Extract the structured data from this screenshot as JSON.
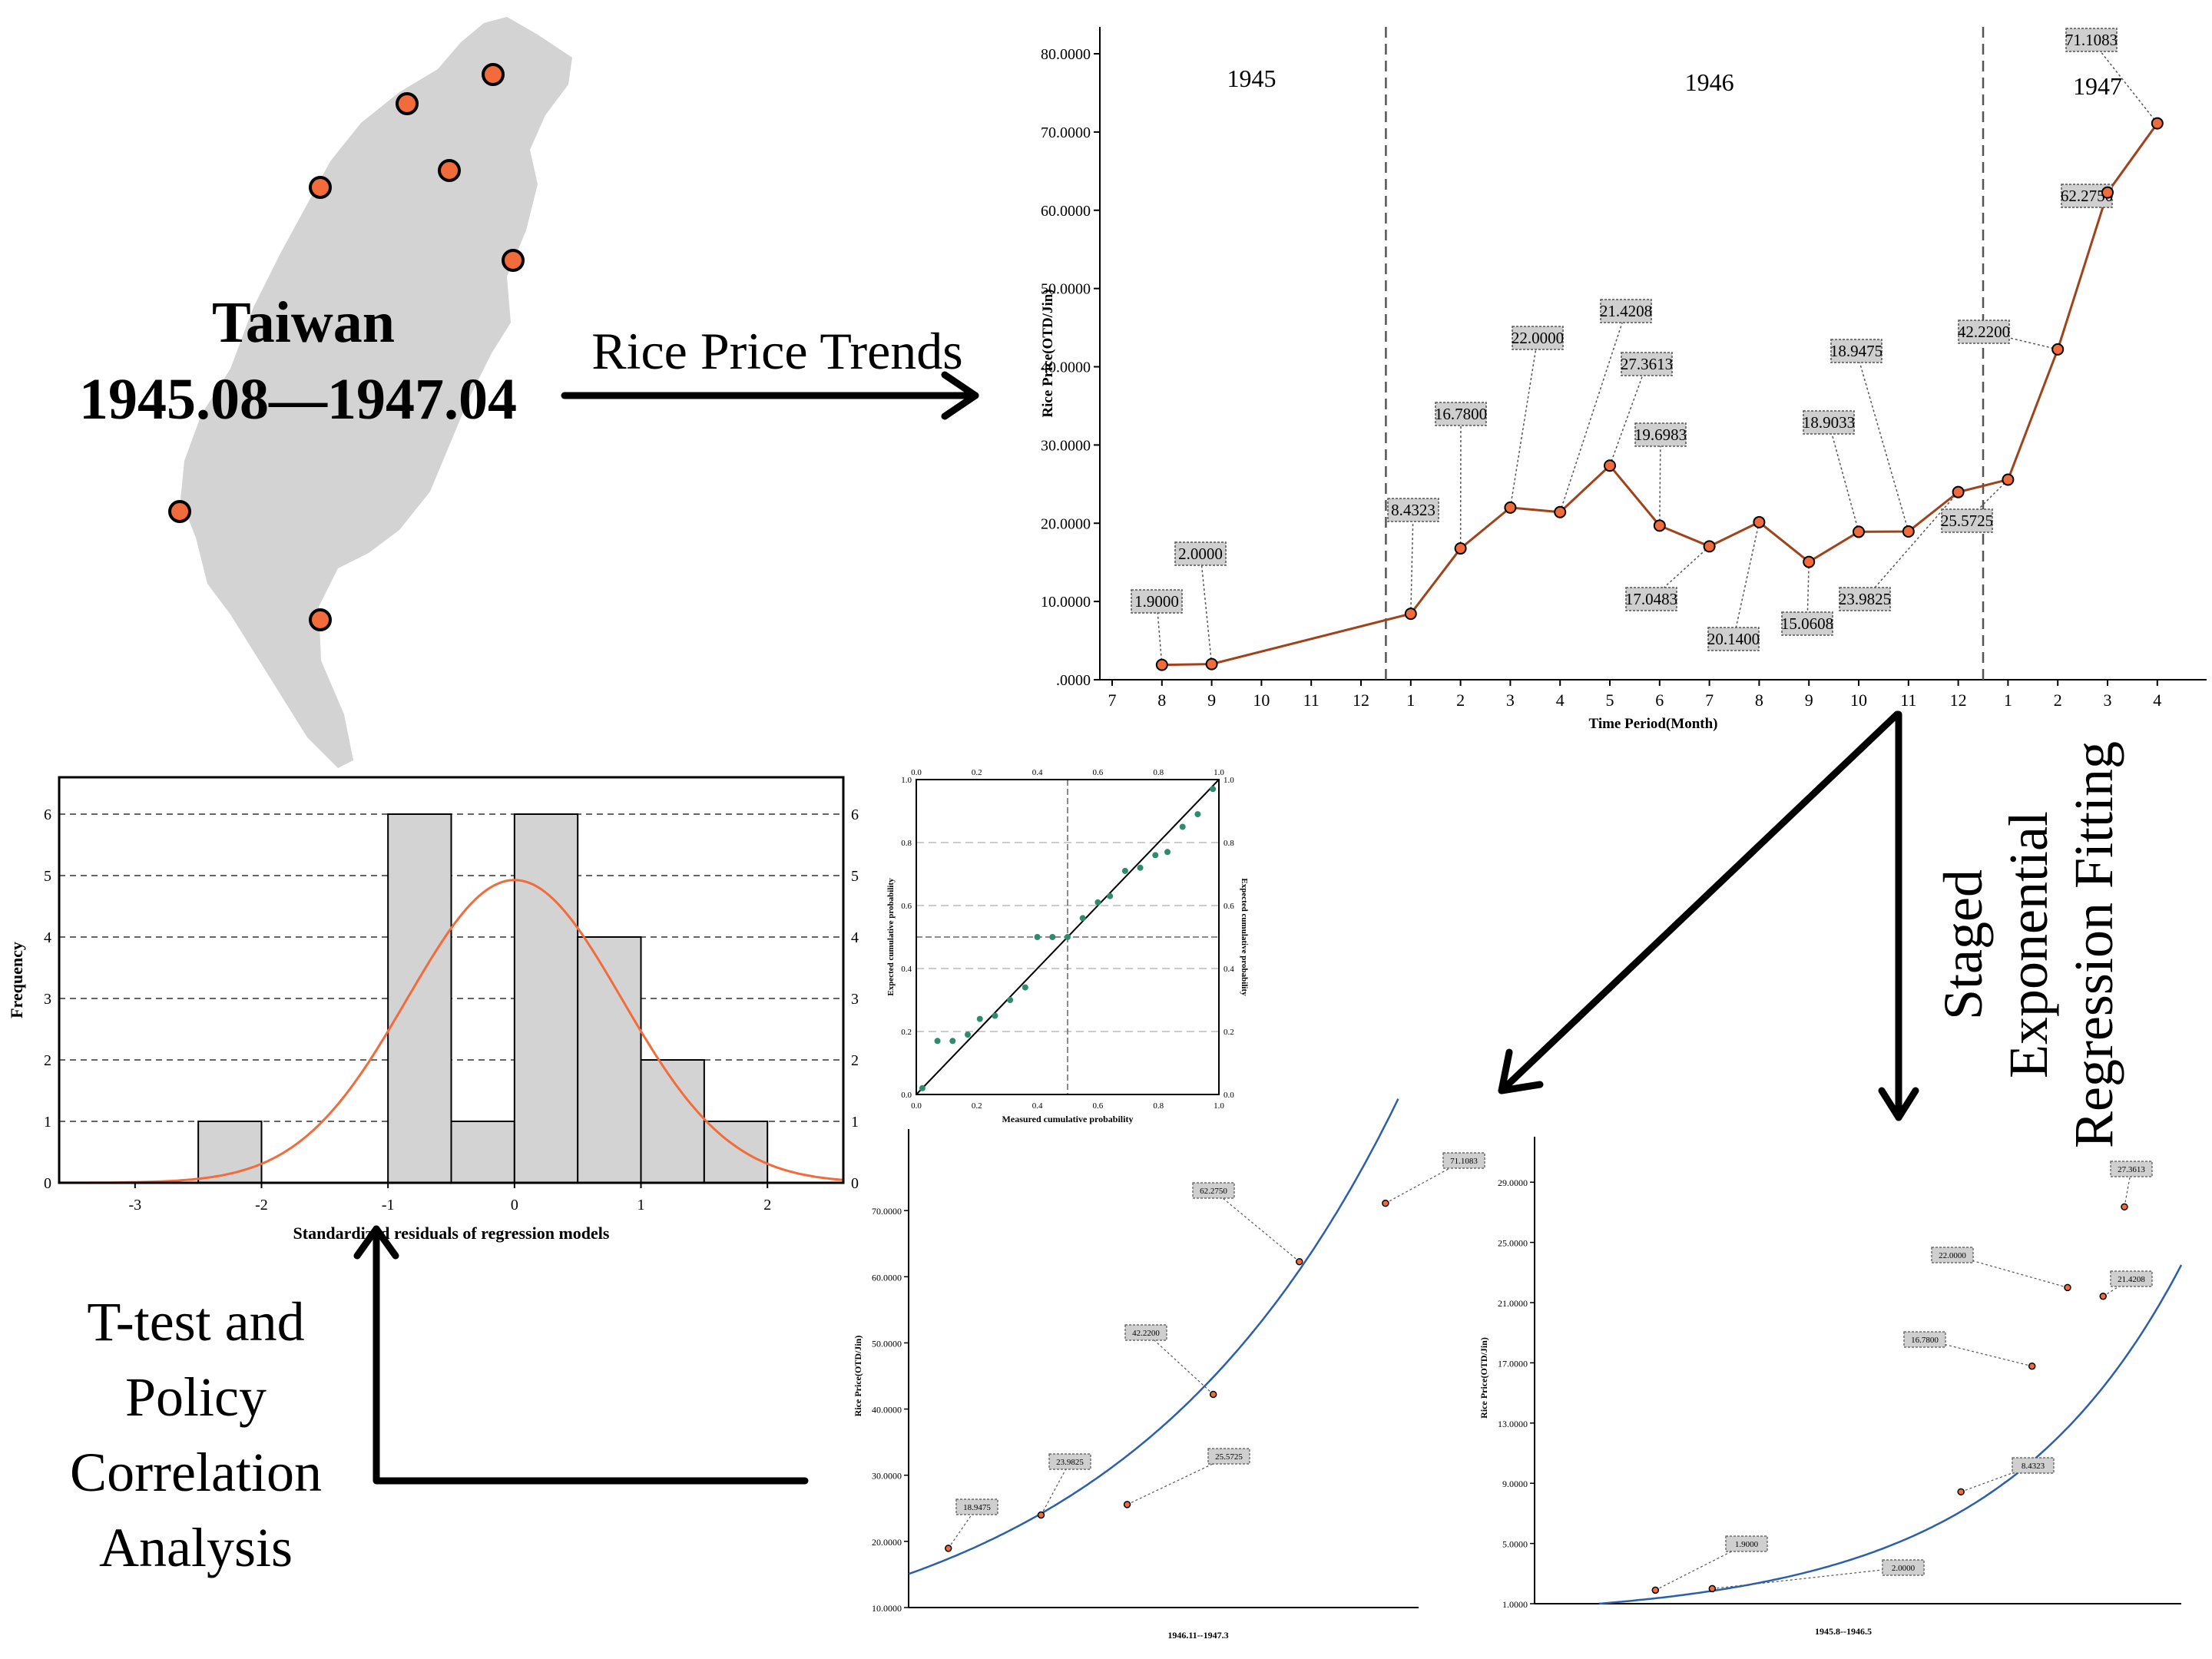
{
  "map": {
    "title": "Taiwan",
    "period": "1945.08—1947.04",
    "colors": {
      "land": "#d3d3d3",
      "marker": "#f26b3a"
    }
  },
  "arrows": {
    "rice_trends": "Rice Price Trends",
    "staged_1": "Staged",
    "staged_2": "Exponential",
    "staged_3": "Regression Fitting",
    "ttest_1": "T-test and",
    "ttest_2": "Policy",
    "ttest_3": "Correlation",
    "ttest_4": "Analysis"
  },
  "chart_data": [
    {
      "id": "trend",
      "type": "line",
      "xlabel": "Time Period(Month)",
      "ylabel": "Rice Price(OTD/Jin)",
      "ylim": [
        0,
        80
      ],
      "yticks": [
        ".0000",
        "10.0000",
        "20.0000",
        "30.0000",
        "40.0000",
        "50.0000",
        "60.0000",
        "70.0000",
        "80.0000"
      ],
      "xticks": [
        "7",
        "8",
        "9",
        "10",
        "11",
        "12",
        "1",
        "2",
        "3",
        "4",
        "5",
        "6",
        "7",
        "8",
        "9",
        "10",
        "11",
        "12",
        "1",
        "2",
        "3",
        "4"
      ],
      "year_labels": [
        "1945",
        "1946",
        "1947"
      ],
      "x": [
        "1945-08",
        "1945-09",
        "1946-01",
        "1946-02",
        "1946-03",
        "1946-04",
        "1946-05",
        "1946-06",
        "1946-07",
        "1946-08",
        "1946-09",
        "1946-10",
        "1946-11",
        "1946-12",
        "1947-01",
        "1947-02",
        "1947-03",
        "1947-04"
      ],
      "values": [
        1.9,
        2.0,
        8.4323,
        16.78,
        22.0,
        21.4208,
        27.3613,
        19.6983,
        17.0483,
        20.14,
        15.0608,
        18.9033,
        18.9475,
        23.9825,
        25.5725,
        42.22,
        62.275,
        71.1083
      ],
      "labels": [
        "1.9000",
        "2.0000",
        "8.4323",
        "16.7800",
        "22.0000",
        "21.4208",
        "27.3613",
        "19.6983",
        "17.0483",
        "20.1400",
        "15.0608",
        "18.9033",
        "18.9475",
        "23.9825",
        "25.5725",
        "42.2200",
        "62.2750",
        "71.1083"
      ],
      "colors": {
        "line": "#a0421a",
        "marker": "#f26b3a"
      }
    },
    {
      "id": "histogram",
      "type": "bar",
      "xlabel": "Standardized residuals of regression models",
      "ylabel": "Frequency",
      "bin_edges": [
        -2.5,
        -2,
        -1.5,
        -1,
        -0.5,
        0,
        0.5,
        1,
        1.5,
        2
      ],
      "values": [
        1,
        0,
        0,
        6,
        1,
        6,
        4,
        2,
        1
      ],
      "xticks": [
        "-3",
        "-2",
        "-1",
        "0",
        "1",
        "2"
      ],
      "yticks": [
        "0",
        "1",
        "2",
        "3",
        "4",
        "5",
        "6"
      ],
      "xlim": [
        -3.6,
        2.6
      ],
      "ylim": [
        0,
        6.6
      ],
      "normal_curve": {
        "mean": 0,
        "sd": 0.85,
        "n": 21,
        "binwidth": 0.5
      },
      "colors": {
        "bar": "#d3d3d3",
        "curve": "#f26b3a"
      }
    },
    {
      "id": "pp_plot",
      "type": "scatter",
      "xlabel": "Measured cumulative probability",
      "ylabel": "Expected cumulative probability",
      "ylabel_right": "Expected cumulative probability",
      "ticks": [
        "0.0",
        "0.2",
        "0.4",
        "0.6",
        "0.8",
        "1.0"
      ],
      "x": [
        0.02,
        0.07,
        0.12,
        0.17,
        0.21,
        0.26,
        0.31,
        0.36,
        0.4,
        0.45,
        0.5,
        0.55,
        0.6,
        0.64,
        0.69,
        0.74,
        0.79,
        0.83,
        0.88,
        0.93,
        0.98
      ],
      "y": [
        0.02,
        0.17,
        0.17,
        0.19,
        0.24,
        0.25,
        0.3,
        0.34,
        0.5,
        0.5,
        0.5,
        0.56,
        0.61,
        0.63,
        0.71,
        0.72,
        0.76,
        0.77,
        0.85,
        0.89,
        0.97
      ],
      "colors": {
        "point": "#2e8b6e"
      }
    },
    {
      "id": "fit_late",
      "type": "scatter",
      "xlabel": "1946.11--1947.3",
      "ylabel": "Rice Price(OTD/Jin)",
      "ylim": [
        10,
        80
      ],
      "yticks": [
        "10.0000",
        "20.0000",
        "30.0000",
        "40.0000",
        "50.0000",
        "60.0000",
        "70.0000"
      ],
      "points": [
        {
          "label": "18.9475",
          "t": 0.6,
          "value": 18.9475
        },
        {
          "label": "23.9825",
          "t": 2.0,
          "value": 23.9825
        },
        {
          "label": "25.5725",
          "t": 3.3,
          "value": 25.5725
        },
        {
          "label": "42.2200",
          "t": 4.6,
          "value": 42.22
        },
        {
          "label": "62.2750",
          "t": 5.9,
          "value": 62.275
        },
        {
          "label": "71.1083",
          "t": 7.2,
          "value": 71.1083
        }
      ],
      "fit": {
        "a": 15.07,
        "b": 0.237,
        "t_max": 7.7
      },
      "colors": {
        "fit": "#2b5fad",
        "point": "#f26b3a"
      }
    },
    {
      "id": "fit_early",
      "type": "scatter",
      "xlabel": "1945.8--1946.5",
      "ylabel": "Rice Price(OTD/Jin)",
      "ylim": [
        1,
        31
      ],
      "yticks": [
        "1.0000",
        "5.0000",
        "9.0000",
        "13.0000",
        "17.0000",
        "21.0000",
        "25.0000",
        "29.0000"
      ],
      "points": [
        {
          "label": "1.9000",
          "t": 0.85,
          "value": 1.9
        },
        {
          "label": "2.0000",
          "t": 1.25,
          "value": 2.0
        },
        {
          "label": "8.4323",
          "t": 3.0,
          "value": 8.4323
        },
        {
          "label": "16.7800",
          "t": 3.5,
          "value": 16.78
        },
        {
          "label": "22.0000",
          "t": 3.75,
          "value": 22.0
        },
        {
          "label": "21.4208",
          "t": 4.0,
          "value": 21.4208
        },
        {
          "label": "27.3613",
          "t": 4.15,
          "value": 27.3613
        }
      ],
      "fit": {
        "t0": 0.45,
        "k": 0.77,
        "t_max": 4.55
      },
      "colors": {
        "fit": "#2b5fad",
        "point": "#f26b3a"
      }
    }
  ]
}
